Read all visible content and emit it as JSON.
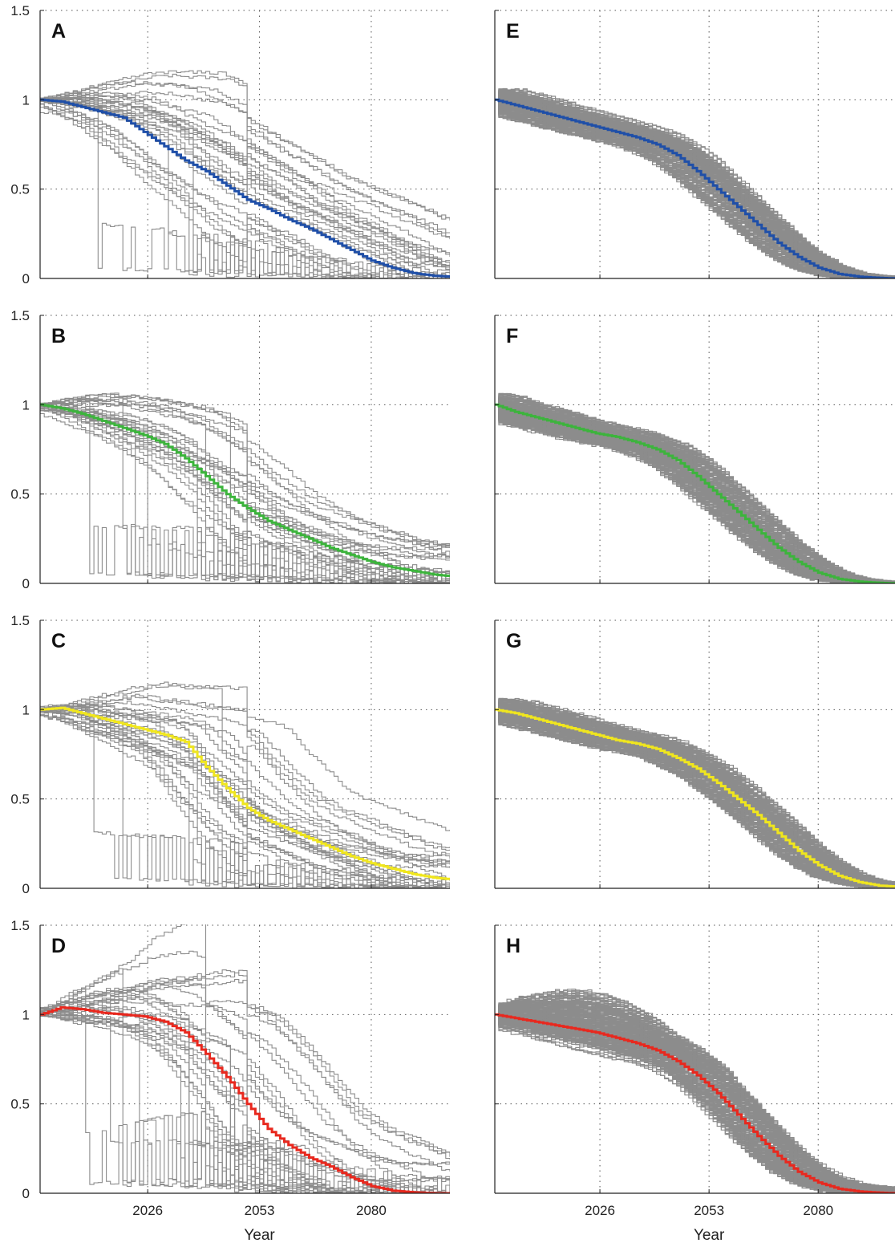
{
  "x_tick_labels": [
    "2026",
    "2053",
    "2080"
  ],
  "y_tick_labels": [
    "0",
    "0.5",
    "1",
    "1.5"
  ],
  "x_axis_label": "Year",
  "colors": {
    "ensemble": "#8c8c8c",
    "grid": "#555555",
    "blue": "#1f4fa8",
    "green": "#3cb43c",
    "yellow": "#f0e61e",
    "red": "#e8281e"
  },
  "chart_data": [
    {
      "panel": "A",
      "type": "line",
      "xlabel": "",
      "ylabel": "",
      "xlim": [
        2000,
        2099
      ],
      "ylim": [
        0,
        1.5
      ],
      "grid": true,
      "mean_color": "blue",
      "ensemble_runs": 30,
      "ensemble_spread": "wide",
      "mean_series": {
        "x": [
          2000,
          2005,
          2010,
          2015,
          2020,
          2025,
          2030,
          2035,
          2040,
          2045,
          2050,
          2055,
          2060,
          2065,
          2070,
          2075,
          2080,
          2085,
          2090,
          2095,
          2099
        ],
        "y": [
          1.0,
          0.99,
          0.96,
          0.93,
          0.9,
          0.82,
          0.74,
          0.66,
          0.6,
          0.52,
          0.44,
          0.39,
          0.33,
          0.28,
          0.22,
          0.16,
          0.1,
          0.06,
          0.03,
          0.015,
          0.01
        ]
      }
    },
    {
      "panel": "B",
      "type": "line",
      "xlabel": "",
      "ylabel": "",
      "xlim": [
        2000,
        2099
      ],
      "ylim": [
        0,
        1.5
      ],
      "grid": true,
      "mean_color": "green",
      "ensemble_runs": 30,
      "ensemble_spread": "wide",
      "mean_series": {
        "x": [
          2000,
          2005,
          2010,
          2015,
          2020,
          2025,
          2030,
          2035,
          2040,
          2045,
          2050,
          2055,
          2060,
          2065,
          2070,
          2075,
          2080,
          2085,
          2090,
          2095,
          2099
        ],
        "y": [
          1.0,
          0.98,
          0.95,
          0.91,
          0.87,
          0.83,
          0.78,
          0.7,
          0.6,
          0.5,
          0.42,
          0.35,
          0.3,
          0.25,
          0.2,
          0.16,
          0.12,
          0.09,
          0.07,
          0.05,
          0.04
        ]
      }
    },
    {
      "panel": "C",
      "type": "line",
      "xlabel": "",
      "ylabel": "",
      "xlim": [
        2000,
        2099
      ],
      "ylim": [
        0,
        1.5
      ],
      "grid": true,
      "mean_color": "yellow",
      "ensemble_runs": 30,
      "ensemble_spread": "wide",
      "mean_series": {
        "x": [
          2000,
          2005,
          2010,
          2015,
          2020,
          2025,
          2030,
          2035,
          2040,
          2045,
          2050,
          2055,
          2060,
          2065,
          2070,
          2075,
          2080,
          2085,
          2090,
          2095,
          2099
        ],
        "y": [
          1.0,
          1.01,
          0.98,
          0.95,
          0.92,
          0.89,
          0.86,
          0.82,
          0.68,
          0.56,
          0.45,
          0.38,
          0.33,
          0.28,
          0.23,
          0.18,
          0.14,
          0.11,
          0.08,
          0.06,
          0.05
        ]
      }
    },
    {
      "panel": "D",
      "type": "line",
      "xlabel": "Year",
      "ylabel": "",
      "xlim": [
        2000,
        2099
      ],
      "ylim": [
        0,
        1.5
      ],
      "grid": true,
      "mean_color": "red",
      "ensemble_runs": 30,
      "ensemble_spread": "very wide, several runs above 1.5",
      "mean_series": {
        "x": [
          2000,
          2005,
          2010,
          2015,
          2020,
          2025,
          2030,
          2035,
          2040,
          2045,
          2050,
          2055,
          2060,
          2065,
          2070,
          2075,
          2080,
          2085,
          2090,
          2095,
          2099
        ],
        "y": [
          1.0,
          1.04,
          1.03,
          1.01,
          1.0,
          0.99,
          0.96,
          0.9,
          0.78,
          0.65,
          0.5,
          0.36,
          0.27,
          0.2,
          0.15,
          0.09,
          0.04,
          0.015,
          0.005,
          0.0,
          0.0
        ]
      }
    },
    {
      "panel": "E",
      "type": "line",
      "xlabel": "",
      "ylabel": "",
      "xlim": [
        2000,
        2099
      ],
      "ylim": [
        0,
        1.5
      ],
      "grid": true,
      "mean_color": "blue",
      "ensemble_runs": 200,
      "ensemble_spread": "narrow",
      "mean_series": {
        "x": [
          2000,
          2005,
          2010,
          2015,
          2020,
          2025,
          2030,
          2035,
          2040,
          2045,
          2050,
          2055,
          2060,
          2065,
          2070,
          2075,
          2080,
          2085,
          2090,
          2095,
          2099
        ],
        "y": [
          1.0,
          0.97,
          0.94,
          0.91,
          0.88,
          0.85,
          0.82,
          0.79,
          0.75,
          0.69,
          0.6,
          0.5,
          0.4,
          0.3,
          0.2,
          0.12,
          0.06,
          0.025,
          0.01,
          0.003,
          0.0
        ]
      }
    },
    {
      "panel": "F",
      "type": "line",
      "xlabel": "",
      "ylabel": "",
      "xlim": [
        2000,
        2099
      ],
      "ylim": [
        0,
        1.5
      ],
      "grid": true,
      "mean_color": "green",
      "ensemble_runs": 200,
      "ensemble_spread": "narrow",
      "mean_series": {
        "x": [
          2000,
          2005,
          2010,
          2015,
          2020,
          2025,
          2030,
          2035,
          2040,
          2045,
          2050,
          2055,
          2060,
          2065,
          2070,
          2075,
          2080,
          2085,
          2090,
          2095,
          2099
        ],
        "y": [
          1.0,
          0.96,
          0.93,
          0.9,
          0.87,
          0.84,
          0.82,
          0.79,
          0.75,
          0.69,
          0.6,
          0.5,
          0.4,
          0.3,
          0.2,
          0.12,
          0.06,
          0.025,
          0.01,
          0.003,
          0.0
        ]
      }
    },
    {
      "panel": "G",
      "type": "line",
      "xlabel": "",
      "ylabel": "",
      "xlim": [
        2000,
        2099
      ],
      "ylim": [
        0,
        1.5
      ],
      "grid": true,
      "mean_color": "yellow",
      "ensemble_runs": 200,
      "ensemble_spread": "narrow",
      "mean_series": {
        "x": [
          2000,
          2005,
          2010,
          2015,
          2020,
          2025,
          2030,
          2035,
          2040,
          2045,
          2050,
          2055,
          2060,
          2065,
          2070,
          2075,
          2080,
          2085,
          2090,
          2095,
          2099
        ],
        "y": [
          1.0,
          0.98,
          0.95,
          0.92,
          0.89,
          0.86,
          0.83,
          0.81,
          0.78,
          0.73,
          0.67,
          0.59,
          0.5,
          0.41,
          0.31,
          0.21,
          0.13,
          0.07,
          0.035,
          0.015,
          0.01
        ]
      }
    },
    {
      "panel": "H",
      "type": "line",
      "xlabel": "Year",
      "ylabel": "",
      "xlim": [
        2000,
        2099
      ],
      "ylim": [
        0,
        1.5
      ],
      "grid": true,
      "mean_color": "red",
      "ensemble_runs": 200,
      "ensemble_spread": "moderate, upper runs above 1",
      "mean_series": {
        "x": [
          2000,
          2005,
          2010,
          2015,
          2020,
          2025,
          2030,
          2035,
          2040,
          2045,
          2050,
          2055,
          2060,
          2065,
          2070,
          2075,
          2080,
          2085,
          2090,
          2095,
          2099
        ],
        "y": [
          1.0,
          0.98,
          0.96,
          0.94,
          0.92,
          0.9,
          0.87,
          0.84,
          0.8,
          0.74,
          0.66,
          0.56,
          0.44,
          0.32,
          0.21,
          0.12,
          0.06,
          0.025,
          0.01,
          0.003,
          0.0
        ]
      }
    }
  ]
}
